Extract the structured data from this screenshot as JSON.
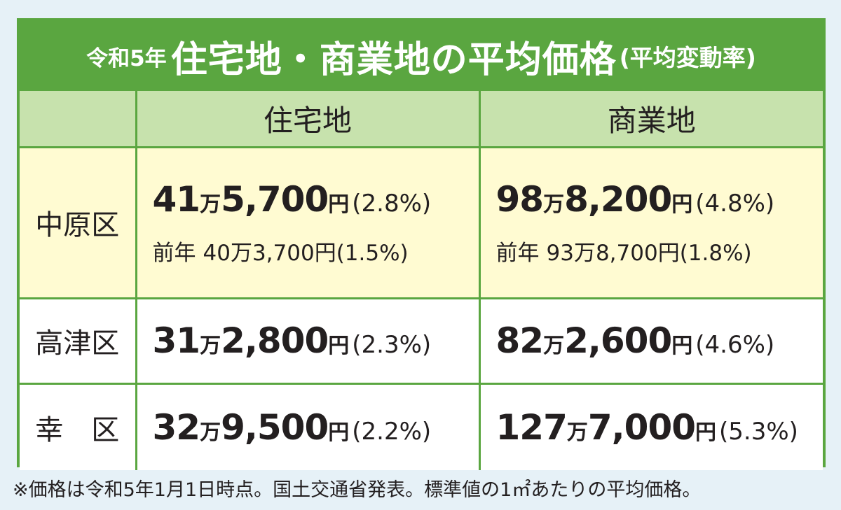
{
  "title": {
    "prefix": "令和5年",
    "main": "住宅地・商業地の平均価格",
    "suffix": "(平均変動率)"
  },
  "columns": [
    "住宅地",
    "商業地"
  ],
  "rows": [
    {
      "district": "中原区",
      "residential": {
        "man": "41",
        "rest": "5,700",
        "yen": "円",
        "pct": "(2.8%)"
      },
      "commercial": {
        "man": "98",
        "rest": "8,200",
        "yen": "円",
        "pct": "(4.8%)"
      },
      "prev_residential": {
        "label": "前年",
        "value": "40万3,700円(1.5%)"
      },
      "prev_commercial": {
        "label": "前年",
        "value": "93万8,700円(1.8%)"
      }
    },
    {
      "district": "高津区",
      "residential": {
        "man": "31",
        "rest": "2,800",
        "yen": "円",
        "pct": "(2.3%)"
      },
      "commercial": {
        "man": "82",
        "rest": "2,600",
        "yen": "円",
        "pct": "(4.6%)"
      }
    },
    {
      "district": "幸　区",
      "residential": {
        "man": "32",
        "rest": "9,500",
        "yen": "円",
        "pct": "(2.2%)"
      },
      "commercial": {
        "man": "127",
        "rest": "7,000",
        "yen": "円",
        "pct": "(5.3%)"
      }
    }
  ],
  "unit_man": "万",
  "footnote": "※価格は令和5年1月1日時点。国土交通省発表。標準値の1㎡あたりの平均価格。",
  "colors": {
    "frame_green": "#5aa640",
    "header_green": "#c7e2ad",
    "highlight_yellow": "#fffbd2",
    "background": "#e6f1f7"
  }
}
